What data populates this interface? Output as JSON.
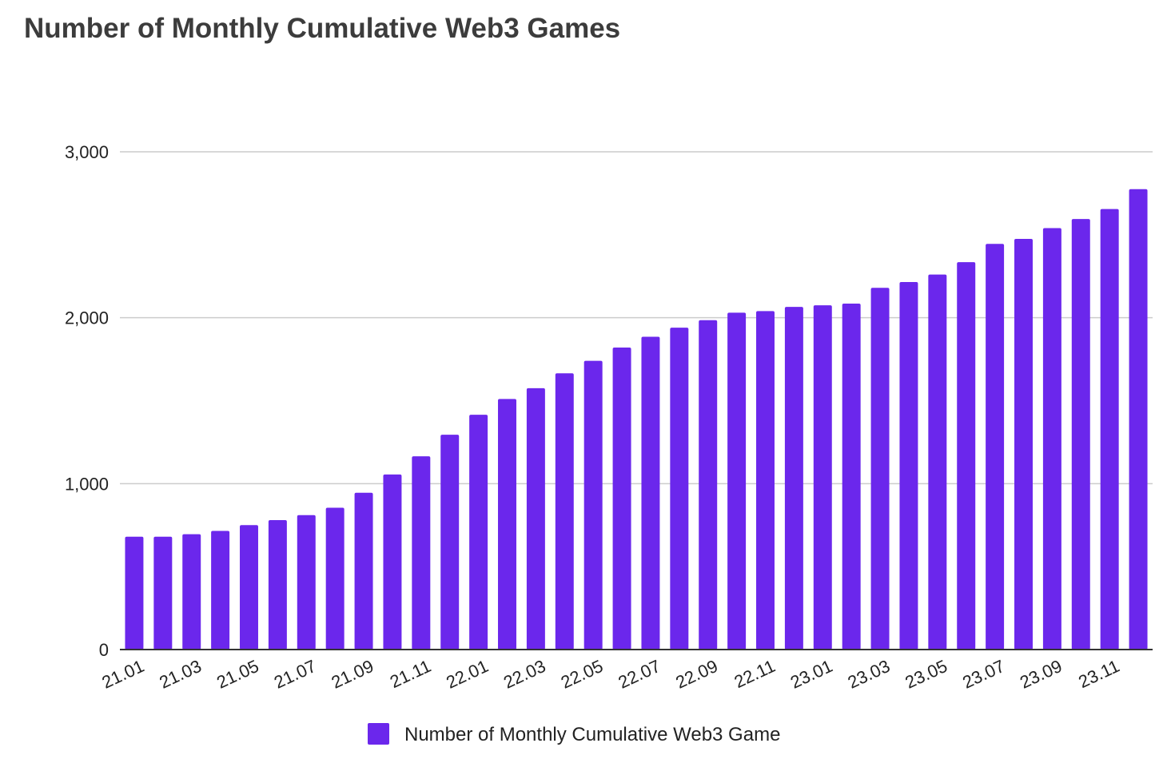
{
  "chart_data": {
    "type": "bar",
    "title": "Number of Monthly Cumulative Web3 Games",
    "xlabel": "",
    "ylabel": "",
    "ylim": [
      0,
      3000
    ],
    "y_ticks": [
      0,
      1000,
      2000,
      3000
    ],
    "y_tick_labels": [
      "0",
      "1,000",
      "2,000",
      "3,000"
    ],
    "grid": true,
    "legend_position": "bottom",
    "bar_color": "#6b27ec",
    "categories": [
      "21.01",
      "21.02",
      "21.03",
      "21.04",
      "21.05",
      "21.06",
      "21.07",
      "21.08",
      "21.09",
      "21.10",
      "21.11",
      "21.12",
      "22.01",
      "22.02",
      "22.03",
      "22.04",
      "22.05",
      "22.06",
      "22.07",
      "22.08",
      "22.09",
      "22.10",
      "22.11",
      "22.12",
      "23.01",
      "23.02",
      "23.03",
      "23.04",
      "23.05",
      "23.06",
      "23.07",
      "23.08",
      "23.09",
      "23.10",
      "23.11",
      "23.12"
    ],
    "x_tick_labels": [
      "21.01",
      "21.03",
      "21.05",
      "21.07",
      "21.09",
      "21.11",
      "22.01",
      "22.03",
      "22.05",
      "22.07",
      "22.09",
      "22.11",
      "23.01",
      "23.03",
      "23.05",
      "23.07",
      "23.09",
      "23.11"
    ],
    "series": [
      {
        "name": "Number of Monthly Cumulative Web3 Game",
        "values": [
          680,
          680,
          695,
          715,
          750,
          780,
          810,
          855,
          945,
          1055,
          1165,
          1295,
          1415,
          1510,
          1575,
          1665,
          1740,
          1820,
          1885,
          1940,
          1985,
          2030,
          2040,
          2065,
          2075,
          2085,
          2180,
          2215,
          2260,
          2335,
          2445,
          2475,
          2540,
          2595,
          2655,
          2775
        ]
      }
    ]
  }
}
